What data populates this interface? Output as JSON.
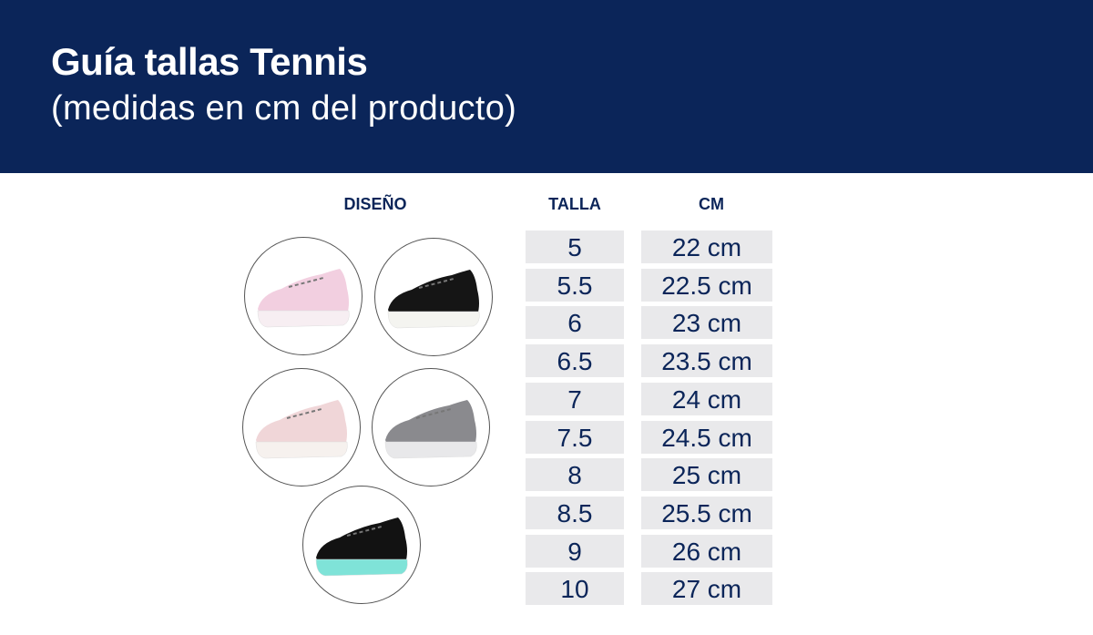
{
  "header": {
    "title": "Guía tallas Tennis",
    "subtitle": "(medidas en cm del producto)"
  },
  "colors": {
    "header_bg": "#0b2559",
    "text": "#0b2559",
    "cell_bg": "#e9e9eb"
  },
  "columns": {
    "design": "DISEÑO",
    "size": "TALLA",
    "cm": "CM"
  },
  "rows": [
    {
      "size": "5",
      "cm": "22 cm"
    },
    {
      "size": "5.5",
      "cm": "22.5 cm"
    },
    {
      "size": "6",
      "cm": "23 cm"
    },
    {
      "size": "6.5",
      "cm": "23.5 cm"
    },
    {
      "size": "7",
      "cm": "24 cm"
    },
    {
      "size": "7.5",
      "cm": "24.5 cm"
    },
    {
      "size": "8",
      "cm": "25 cm"
    },
    {
      "size": "8.5",
      "cm": "25.5 cm"
    },
    {
      "size": "9",
      "cm": "26 cm"
    },
    {
      "size": "10",
      "cm": "27 cm"
    }
  ],
  "designs": [
    {
      "upper": "#f2cfe0",
      "sole": "#f7eef2"
    },
    {
      "upper": "#151515",
      "sole": "#f4f4f0"
    },
    {
      "upper": "#f0d6d8",
      "sole": "#f6f1ee"
    },
    {
      "upper": "#8a8a8e",
      "sole": "#e8e8ea"
    },
    {
      "upper": "#121212",
      "sole": "#7fe3d8"
    }
  ]
}
